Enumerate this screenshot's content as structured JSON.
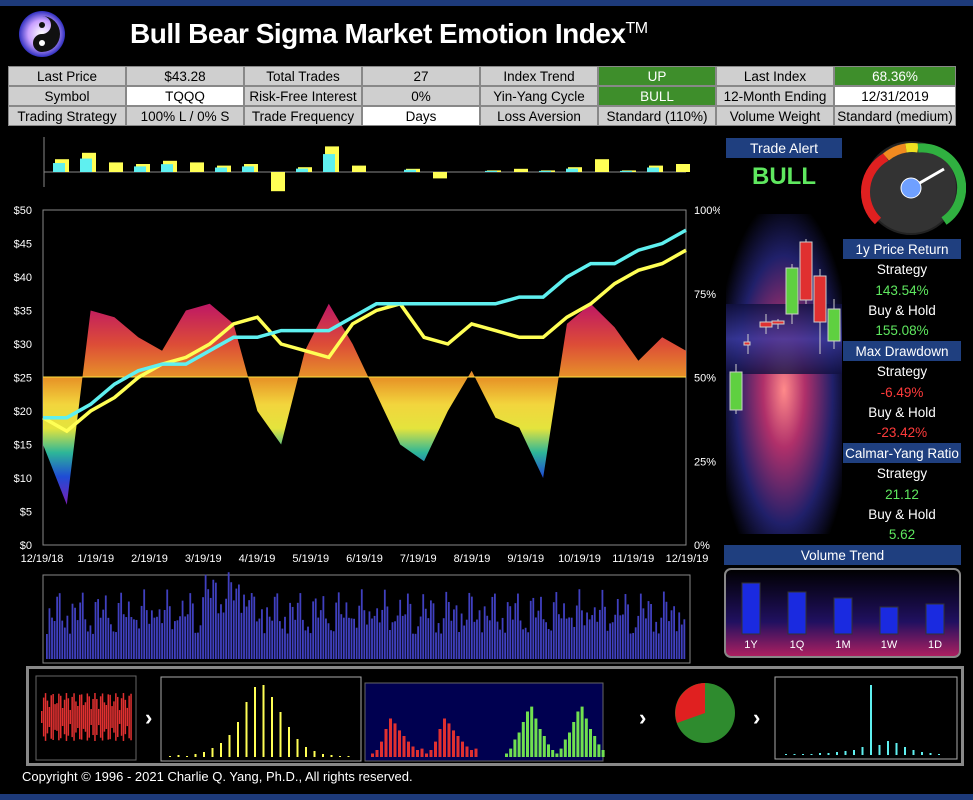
{
  "header": {
    "title": "Bull Bear Sigma Market Emotion Index",
    "trademark": "TM"
  },
  "info": {
    "last_price_label": "Last Price",
    "last_price": "$43.28",
    "total_trades_label": "Total Trades",
    "total_trades": "27",
    "index_trend_label": "Index Trend",
    "index_trend": "UP",
    "last_index_label": "Last Index",
    "last_index": "68.36%",
    "symbol_label": "Symbol",
    "symbol": "TQQQ",
    "risk_free_label": "Risk-Free Interest",
    "risk_free": "0%",
    "yin_yang_label": "Yin-Yang Cycle",
    "yin_yang": "BULL",
    "month_ending_label": "12-Month Ending",
    "month_ending": "12/31/2019",
    "strategy_label": "Trading Strategy",
    "strategy": "100% L / 0% S",
    "frequency_label": "Trade Frequency",
    "frequency": "Days",
    "loss_aversion_label": "Loss Aversion",
    "loss_aversion": "Standard (110%)",
    "volume_weight_label": "Volume Weight",
    "volume_weight": "Standard (medium)"
  },
  "trade_alert": {
    "label": "Trade Alert",
    "value": "BULL"
  },
  "stats": {
    "price_return_label": "1y Price Return",
    "max_drawdown_label": "Max Drawdown",
    "calmar_label": "Calmar-Yang Ratio",
    "strategy_label": "Strategy",
    "buy_hold_label": "Buy & Hold",
    "price_return_strategy": "143.54%",
    "price_return_buyhold": "155.08%",
    "drawdown_strategy": "-6.49%",
    "drawdown_buyhold": "-23.42%",
    "calmar_strategy": "21.12",
    "calmar_buyhold": "5.62"
  },
  "volume_trend": {
    "label": "Volume Trend",
    "periods": [
      "1Y",
      "1Q",
      "1M",
      "1W",
      "1D"
    ],
    "values": [
      0.85,
      0.7,
      0.6,
      0.45,
      0.5
    ]
  },
  "footer": {
    "copyright": "Copyright © 1996 - 2021 Charlie Q. Yang, Ph.D., All rights reserved."
  },
  "colors": {
    "accent_blue": "#1f3f7f",
    "bull_green": "#5fe85f",
    "bear_red": "#ff3b3b",
    "price_yellow": "#ffff55",
    "index_cyan": "#5ff0f0"
  },
  "chart_data": {
    "type": "line",
    "y_left_ticks": [
      "$50",
      "$45",
      "$40",
      "$35",
      "$30",
      "$25",
      "$20",
      "$15",
      "$10",
      "$5",
      "$0"
    ],
    "y_right_ticks": [
      "100%",
      "75%",
      "50%",
      "25%",
      "0%"
    ],
    "x_ticks": [
      "12/19/18",
      "1/19/19",
      "2/19/19",
      "3/19/19",
      "4/19/19",
      "5/19/19",
      "6/19/19",
      "7/19/19",
      "8/19/19",
      "9/19/19",
      "10/19/19",
      "11/19/19",
      "12/19/19"
    ],
    "ylim_left": [
      0,
      50
    ],
    "ylim_right": [
      0,
      100
    ],
    "series": [
      {
        "values": [
          19,
          17,
          20,
          22,
          25,
          27,
          28,
          30,
          33,
          34,
          30,
          29,
          28,
          33,
          35,
          36,
          31,
          30,
          33,
          32,
          31,
          31,
          34,
          36,
          39,
          41,
          42,
          44
        ]
      },
      {
        "values": [
          19,
          19,
          21,
          24,
          26,
          27,
          27,
          29,
          31,
          31,
          32,
          32,
          32,
          34,
          36,
          36,
          36,
          36,
          36,
          36,
          37,
          37,
          40,
          42,
          42,
          44,
          45,
          47
        ]
      },
      {
        "values": [
          30,
          12,
          70,
          68,
          62,
          58,
          70,
          72,
          66,
          40,
          30,
          58,
          72,
          60,
          45,
          30,
          25,
          40,
          52,
          38,
          35,
          20,
          66,
          72,
          65,
          55,
          62,
          58
        ]
      }
    ]
  }
}
